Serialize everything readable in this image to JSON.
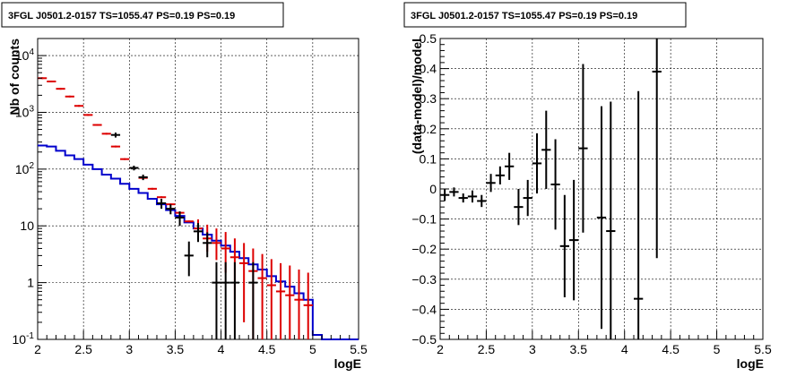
{
  "chart_data": [
    {
      "type": "line",
      "title": "3FGL J0501.2-0157 TS=1055.47 PS=0.19 PS=0.19",
      "xlabel": "logE",
      "ylabel": "Nb of counts",
      "xlim": [
        2,
        5.5
      ],
      "ylim": [
        0.1,
        20000
      ],
      "yscale": "log",
      "grid": true,
      "x_ticks": [
        "2",
        "2.5",
        "3",
        "3.5",
        "4",
        "4.5",
        "5",
        "5.5"
      ],
      "y_ticks": [
        {
          "value": 0.1,
          "base": "10",
          "exp": "-1"
        },
        {
          "value": 1,
          "label": "1"
        },
        {
          "value": 10,
          "label": "10"
        },
        {
          "value": 100,
          "base": "10",
          "exp": "2"
        },
        {
          "value": 1000,
          "base": "10",
          "exp": "3"
        },
        {
          "value": 10000,
          "base": "10",
          "exp": "4"
        }
      ],
      "series": [
        {
          "style": "step",
          "color": "#0000cc",
          "edges": [
            2.0,
            2.1,
            2.2,
            2.3,
            2.4,
            2.5,
            2.6,
            2.7,
            2.8,
            2.9,
            3.0,
            3.1,
            3.2,
            3.3,
            3.4,
            3.5,
            3.6,
            3.7,
            3.8,
            3.9,
            4.0,
            4.1,
            4.2,
            4.3,
            4.4,
            4.5,
            4.6,
            4.7,
            4.8,
            4.9,
            5.0,
            5.1,
            5.2,
            5.3,
            5.4,
            5.5
          ],
          "values": [
            260,
            250,
            210,
            175,
            150,
            120,
            100,
            80,
            68,
            55,
            45,
            38,
            30,
            24,
            19,
            15,
            11.5,
            9,
            7,
            5.5,
            4.5,
            3.5,
            2.7,
            2.1,
            1.7,
            1.3,
            1.05,
            0.85,
            0.65,
            0.5,
            0.12,
            0.1,
            0.1,
            0.1,
            0.1
          ]
        },
        {
          "style": "errorbar",
          "color": "#dd0000",
          "x": [
            2.05,
            2.15,
            2.25,
            2.35,
            2.45,
            2.55,
            2.65,
            2.75,
            2.85,
            2.95,
            3.05,
            3.15,
            3.25,
            3.35,
            3.45,
            3.55,
            3.65,
            3.75,
            3.85,
            3.95,
            4.05,
            4.15,
            4.25,
            4.35,
            4.45,
            4.55,
            4.65,
            4.75,
            4.85,
            4.95
          ],
          "y": [
            4000,
            3500,
            2600,
            1900,
            1300,
            900,
            600,
            420,
            250,
            150,
            105,
            70,
            45,
            32,
            24,
            17,
            12,
            9,
            6,
            5,
            4,
            2.8,
            2.2,
            1.6,
            1.2,
            0.9,
            0.7,
            0.6,
            0.5,
            0.4
          ],
          "yerr": [
            0,
            0,
            0,
            0,
            0,
            0,
            0,
            0,
            0,
            0,
            0,
            0,
            0,
            0,
            0,
            0,
            0,
            0,
            0,
            0,
            0,
            0,
            0,
            0,
            0,
            0,
            0,
            0,
            0,
            0
          ],
          "yerr_lo": [
            0,
            0,
            0,
            0,
            0,
            0,
            0,
            0,
            0,
            0,
            0,
            0,
            0,
            0,
            0,
            0,
            0,
            1.5,
            2.5,
            2.5,
            2.5,
            2.3,
            2.0,
            1.5,
            1.15,
            0.88,
            0.69,
            0.59,
            0.49,
            0.39
          ],
          "yerr_hi": [
            0,
            0,
            0,
            0,
            0,
            0,
            0,
            0,
            0,
            0,
            0,
            0,
            0,
            0,
            0,
            0,
            0,
            4,
            4.5,
            4,
            3.8,
            3.2,
            2.8,
            2.4,
            2.0,
            1.7,
            1.5,
            1.4,
            1.2,
            1.1
          ]
        },
        {
          "style": "errorbar",
          "color": "#000000",
          "x": [
            2.85,
            3.05,
            3.15,
            3.35,
            3.45,
            3.55,
            3.65,
            3.75,
            3.85,
            3.95,
            4.05,
            4.15,
            4.35
          ],
          "y": [
            400,
            105,
            72,
            25,
            20,
            14,
            3,
            8,
            5,
            1,
            1,
            1,
            1
          ],
          "yerr_lo": [
            40,
            10,
            8,
            5,
            4,
            4,
            1.7,
            2.8,
            2.2,
            0.9,
            0.9,
            0.9,
            0.9
          ],
          "yerr_hi": [
            40,
            10,
            8,
            5,
            4,
            4,
            2.3,
            3.2,
            2.7,
            1.3,
            1.3,
            1.3,
            1.3
          ]
        }
      ]
    },
    {
      "type": "scatter",
      "title": "3FGL J0501.2-0157 TS=1055.47 PS=0.19 PS=0.19",
      "xlabel": "logE",
      "ylabel": "(data-model)/model",
      "xlim": [
        2,
        5.5
      ],
      "ylim": [
        -0.5,
        0.5
      ],
      "grid": true,
      "x_ticks": [
        "2",
        "2.5",
        "3",
        "3.5",
        "4",
        "4.5",
        "5",
        "5.5"
      ],
      "y_ticks": [
        "−0.5",
        "−0.4",
        "−0.3",
        "−0.2",
        "−0.1",
        "0",
        "0.1",
        "0.2",
        "0.3",
        "0.4",
        "0.5"
      ],
      "series": [
        {
          "style": "errorbar",
          "color": "#000000",
          "x": [
            2.05,
            2.15,
            2.25,
            2.35,
            2.45,
            2.55,
            2.65,
            2.75,
            2.85,
            2.95,
            3.05,
            3.15,
            3.25,
            3.35,
            3.45,
            3.55,
            3.75,
            3.85,
            4.15,
            4.35
          ],
          "y": [
            -0.02,
            -0.01,
            -0.03,
            -0.025,
            -0.04,
            0.02,
            0.045,
            0.075,
            -0.06,
            -0.03,
            0.085,
            0.13,
            0.015,
            -0.19,
            -0.17,
            0.135,
            -0.095,
            -0.14,
            -0.365,
            0.39
          ],
          "yerr": [
            0.02,
            0.015,
            0.015,
            0.02,
            0.02,
            0.03,
            0.03,
            0.045,
            0.06,
            0.06,
            0.1,
            0.13,
            0.15,
            0.17,
            0.2,
            0.28,
            0.37,
            0.43,
            0.69,
            0.62
          ]
        }
      ]
    }
  ]
}
